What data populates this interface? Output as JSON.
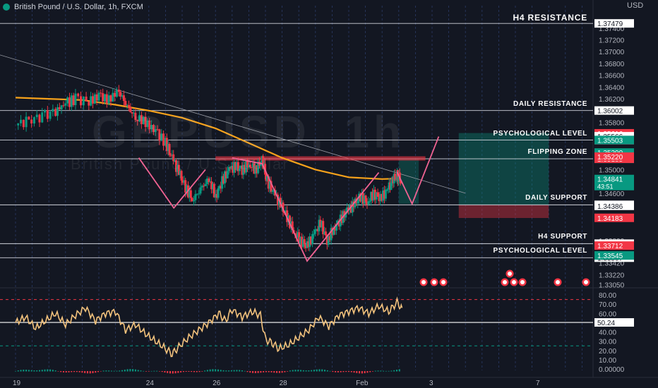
{
  "header": {
    "symbol_title": "British Pound / U.S. Dollar, 1h, FXCM",
    "currency": "USD"
  },
  "watermark": {
    "symbol": "GBPUSD, 1h",
    "name": "British Pound / U.S. Dollar"
  },
  "levels": [
    {
      "label": "H4 RESISTANCE",
      "price": 1.37479,
      "tag": "1.37479",
      "tag_color": "#ffffff",
      "line": true
    },
    {
      "label": "DAILY RESISTANCE",
      "price": 1.36002,
      "tag": "1.36002",
      "tag_color": "#ffffff",
      "line": true
    },
    {
      "label": "PSYCHOLOGICAL LEVEL",
      "price": 1.35501,
      "tag": "1.35501",
      "tag_color": "#ffffff",
      "line": true
    },
    {
      "label": "FLIPPING ZONE",
      "price": 1.35184,
      "tag": "1.35184",
      "tag_color": "#ffffff",
      "line": true
    },
    {
      "label": "DAILY SUPPORT",
      "price": 1.34403,
      "tag": "1.34403",
      "tag_color": "#ffffff",
      "line": true
    },
    {
      "label": "H4 SUPPORT",
      "price": 1.33745,
      "tag": "1.33745",
      "tag_color": "#ffffff",
      "line": true
    },
    {
      "label": "PSYCHOLOGICAL LEVEL",
      "price": 1.33507,
      "tag": "1.33507",
      "tag_color": "#ffffff",
      "line": true
    }
  ],
  "price_tags": [
    {
      "price": 1.35616,
      "text": "1.35616",
      "bg": "#f23645",
      "fg": "#ffffff"
    },
    {
      "price": 1.35566,
      "text": "1.35566",
      "bg": "#ffffff",
      "fg": "#131722"
    },
    {
      "price": 1.35503,
      "text": "1.35503",
      "bg": "#089981",
      "fg": "#ffffff"
    },
    {
      "price": 1.3529,
      "text": "1.35290",
      "bg": "#089981",
      "fg": "#ffffff"
    },
    {
      "price": 1.35208,
      "text": "1.35208",
      "bg": "#ffffff",
      "fg": "#131722"
    },
    {
      "price": 1.35185,
      "text": "1.35185",
      "bg": "#f23645",
      "fg": "#ffffff"
    },
    {
      "price": 1.34841,
      "text": "1.34841",
      "bg": "#089981",
      "fg": "#ffffff",
      "sub": "43:51"
    },
    {
      "price": 1.34401,
      "text": "1.34401",
      "bg": "#ffffff",
      "fg": "#131722"
    },
    {
      "price": 1.34386,
      "text": "1.34386",
      "bg": "#ffffff",
      "fg": "#131722"
    },
    {
      "price": 1.34183,
      "text": "1.34183",
      "bg": "#f23645",
      "fg": "#ffffff"
    },
    {
      "price": 1.33712,
      "text": "1.33712",
      "bg": "#f23645",
      "fg": "#ffffff"
    },
    {
      "price": 1.33545,
      "text": "1.33545",
      "bg": "#089981",
      "fg": "#ffffff"
    },
    {
      "price": 1.3522,
      "text": "1.35220",
      "bg": "#f23645",
      "fg": "#ffffff"
    }
  ],
  "chart_data": {
    "type": "candlestick",
    "title": "British Pound / U.S. Dollar, 1h, FXCM",
    "symbol": "GBPUSD",
    "timeframe": "1h",
    "y_axis_ticks": [
      "1.37400",
      "1.37200",
      "1.37000",
      "1.36800",
      "1.36600",
      "1.36400",
      "1.36200",
      "1.35800",
      "1.35000",
      "1.34600",
      "1.33800",
      "1.33420",
      "1.33220",
      "1.33050"
    ],
    "ylim": [
      1.3302,
      1.3778
    ],
    "x_axis_ticks": [
      "19",
      "24",
      "26",
      "28",
      "Feb",
      "3",
      "7"
    ],
    "x_axis_tick_days": [
      0,
      4,
      6,
      8,
      10.3,
      12.5,
      15.7
    ],
    "close_path": [
      [
        0.0,
        1.3575
      ],
      [
        0.4,
        1.3585
      ],
      [
        0.8,
        1.359
      ],
      [
        1.2,
        1.36
      ],
      [
        1.5,
        1.3612
      ],
      [
        1.8,
        1.362
      ],
      [
        2.2,
        1.3615
      ],
      [
        2.5,
        1.3625
      ],
      [
        2.8,
        1.3618
      ],
      [
        3.1,
        1.3635
      ],
      [
        3.35,
        1.3605
      ],
      [
        3.6,
        1.359
      ],
      [
        3.9,
        1.358
      ],
      [
        4.2,
        1.3565
      ],
      [
        4.5,
        1.3545
      ],
      [
        4.7,
        1.352
      ],
      [
        4.9,
        1.3495
      ],
      [
        5.1,
        1.347
      ],
      [
        5.3,
        1.345
      ],
      [
        5.55,
        1.3465
      ],
      [
        5.8,
        1.3485
      ],
      [
        6.0,
        1.3455
      ],
      [
        6.2,
        1.348
      ],
      [
        6.4,
        1.35
      ],
      [
        6.6,
        1.3505
      ],
      [
        6.8,
        1.35
      ],
      [
        7.0,
        1.351
      ],
      [
        7.2,
        1.35
      ],
      [
        7.4,
        1.3515
      ],
      [
        7.55,
        1.348
      ],
      [
        7.75,
        1.346
      ],
      [
        7.95,
        1.344
      ],
      [
        8.15,
        1.342
      ],
      [
        8.35,
        1.3395
      ],
      [
        8.55,
        1.338
      ],
      [
        8.75,
        1.337
      ],
      [
        8.95,
        1.339
      ],
      [
        9.15,
        1.341
      ],
      [
        9.35,
        1.338
      ],
      [
        9.55,
        1.34
      ],
      [
        9.75,
        1.3415
      ],
      [
        9.95,
        1.343
      ],
      [
        10.15,
        1.344
      ],
      [
        10.35,
        1.3455
      ],
      [
        10.55,
        1.3445
      ],
      [
        10.75,
        1.346
      ],
      [
        10.95,
        1.345
      ],
      [
        11.15,
        1.3465
      ],
      [
        11.3,
        1.348
      ],
      [
        11.45,
        1.349
      ],
      [
        11.55,
        1.3484
      ]
    ],
    "moving_average": [
      [
        0.0,
        1.3622
      ],
      [
        1.0,
        1.362
      ],
      [
        2.0,
        1.3618
      ],
      [
        3.0,
        1.361
      ],
      [
        4.0,
        1.36
      ],
      [
        5.0,
        1.3588
      ],
      [
        6.0,
        1.357
      ],
      [
        7.0,
        1.3545
      ],
      [
        8.0,
        1.352
      ],
      [
        9.0,
        1.35
      ],
      [
        10.0,
        1.3487
      ],
      [
        11.0,
        1.3484
      ],
      [
        11.55,
        1.3485
      ]
    ],
    "trendline": [
      [
        -0.5,
        1.3695
      ],
      [
        13.5,
        1.346
      ]
    ],
    "resistance_box": {
      "x0": 6.0,
      "x1": 12.3,
      "y": 1.3519
    },
    "projection": [
      [
        11.45,
        1.3496
      ],
      [
        11.9,
        1.3442
      ],
      [
        12.7,
        1.3556
      ]
    ],
    "pattern_lines": [
      [
        [
          3.7,
          1.352
        ],
        [
          4.75,
          1.3435
        ],
        [
          5.7,
          1.35
        ]
      ],
      [
        [
          6.5,
          1.352
        ],
        [
          7.4,
          1.351
        ],
        [
          8.75,
          1.3345
        ],
        [
          10.9,
          1.3495
        ]
      ]
    ],
    "long_position": {
      "x0": 13.3,
      "x1": 16.0,
      "entry": 1.344,
      "target": 1.3562,
      "stop": 1.3418
    }
  },
  "oscillator": {
    "name": "RSI",
    "value_label": "50.24",
    "ticks": [
      "80.00",
      "70.00",
      "60.00",
      "50.00",
      "40.00",
      "30.00",
      "20.00",
      "10.00",
      "0.00000"
    ],
    "ylim": [
      0,
      80
    ],
    "overbought": 75,
    "oversold": 25,
    "midline": 50.24,
    "values": [
      [
        0.0,
        50
      ],
      [
        0.3,
        56
      ],
      [
        0.6,
        44
      ],
      [
        0.9,
        52
      ],
      [
        1.2,
        60
      ],
      [
        1.5,
        48
      ],
      [
        1.8,
        58
      ],
      [
        2.1,
        66
      ],
      [
        2.4,
        52
      ],
      [
        2.7,
        60
      ],
      [
        3.0,
        62
      ],
      [
        3.3,
        42
      ],
      [
        3.6,
        48
      ],
      [
        3.9,
        38
      ],
      [
        4.2,
        30
      ],
      [
        4.5,
        22
      ],
      [
        4.7,
        16
      ],
      [
        4.9,
        24
      ],
      [
        5.2,
        34
      ],
      [
        5.5,
        42
      ],
      [
        5.8,
        50
      ],
      [
        6.1,
        60
      ],
      [
        6.3,
        52
      ],
      [
        6.5,
        64
      ],
      [
        6.8,
        56
      ],
      [
        7.1,
        62
      ],
      [
        7.35,
        58
      ],
      [
        7.5,
        32
      ],
      [
        7.7,
        28
      ],
      [
        7.9,
        22
      ],
      [
        8.2,
        26
      ],
      [
        8.5,
        34
      ],
      [
        8.8,
        42
      ],
      [
        9.1,
        56
      ],
      [
        9.4,
        46
      ],
      [
        9.7,
        58
      ],
      [
        10.0,
        62
      ],
      [
        10.3,
        66
      ],
      [
        10.6,
        60
      ],
      [
        10.9,
        68
      ],
      [
        11.2,
        62
      ],
      [
        11.45,
        72
      ],
      [
        11.6,
        66
      ]
    ]
  },
  "volume_hist": {
    "color_up": "#089981",
    "color_down": "#f23645"
  }
}
